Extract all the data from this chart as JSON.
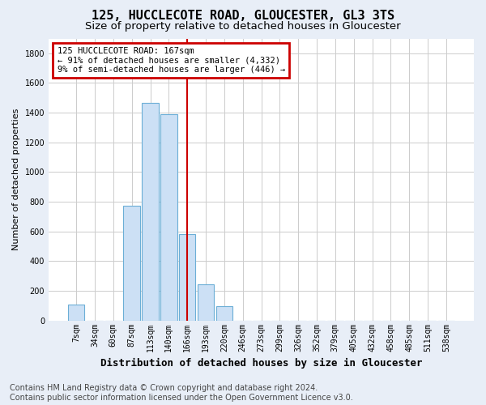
{
  "title": "125, HUCCLECOTE ROAD, GLOUCESTER, GL3 3TS",
  "subtitle": "Size of property relative to detached houses in Gloucester",
  "xlabel": "Distribution of detached houses by size in Gloucester",
  "ylabel": "Number of detached properties",
  "categories": [
    "7sqm",
    "34sqm",
    "60sqm",
    "87sqm",
    "113sqm",
    "140sqm",
    "166sqm",
    "193sqm",
    "220sqm",
    "246sqm",
    "273sqm",
    "299sqm",
    "326sqm",
    "352sqm",
    "379sqm",
    "405sqm",
    "432sqm",
    "458sqm",
    "485sqm",
    "511sqm",
    "538sqm"
  ],
  "values": [
    105,
    0,
    0,
    775,
    1465,
    1390,
    580,
    245,
    95,
    0,
    0,
    0,
    0,
    0,
    0,
    0,
    0,
    0,
    0,
    0,
    0
  ],
  "bar_color": "#cce0f5",
  "bar_edge_color": "#6baed6",
  "vertical_line_index": 6,
  "vertical_line_color": "#cc0000",
  "annotation_text": "125 HUCCLECOTE ROAD: 167sqm\n← 91% of detached houses are smaller (4,332)\n9% of semi-detached houses are larger (446) →",
  "annotation_box_color": "#cc0000",
  "ylim": [
    0,
    1900
  ],
  "yticks": [
    0,
    200,
    400,
    600,
    800,
    1000,
    1200,
    1400,
    1600,
    1800
  ],
  "footer_line1": "Contains HM Land Registry data © Crown copyright and database right 2024.",
  "footer_line2": "Contains public sector information licensed under the Open Government Licence v3.0.",
  "plot_bg_color": "#ffffff",
  "fig_bg_color": "#e8eef7",
  "grid_color": "#cccccc",
  "title_fontsize": 11,
  "subtitle_fontsize": 9.5,
  "xlabel_fontsize": 9,
  "ylabel_fontsize": 8,
  "tick_fontsize": 7,
  "annotation_fontsize": 7.5,
  "footer_fontsize": 7
}
